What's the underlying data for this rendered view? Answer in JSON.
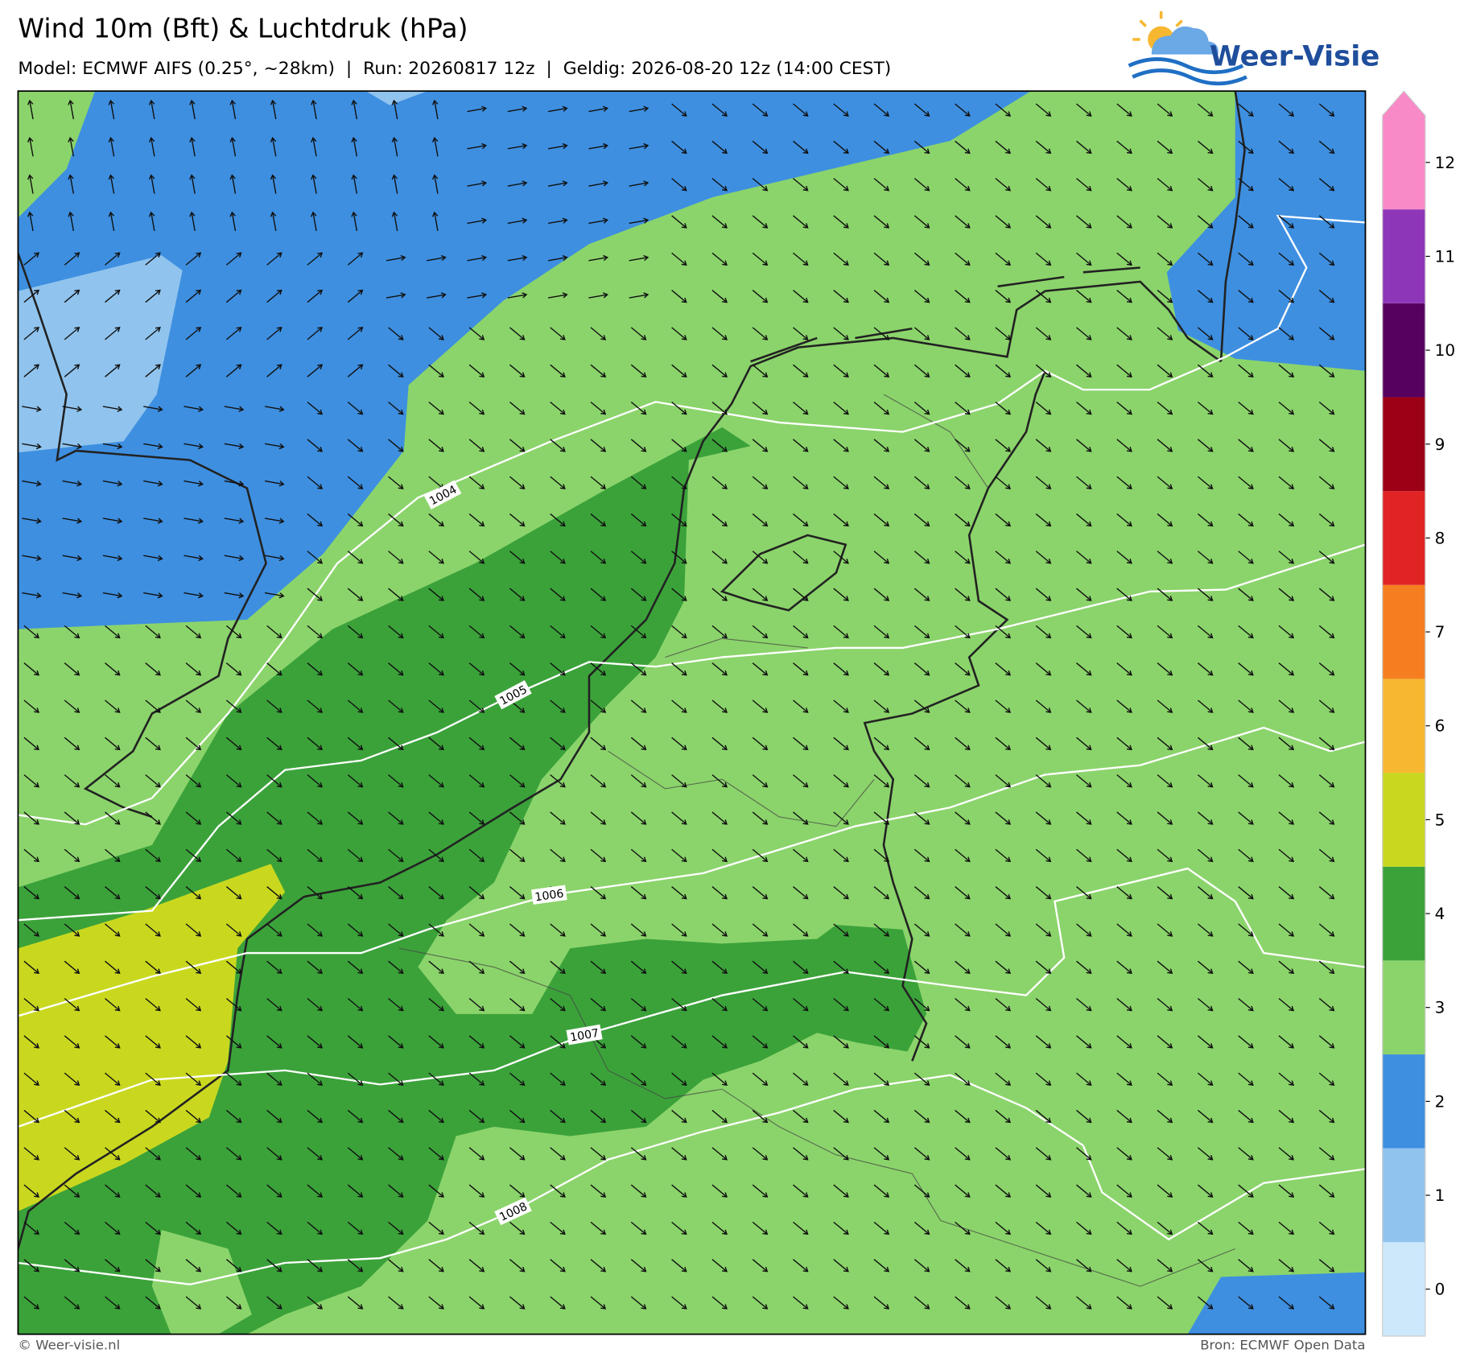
{
  "header": {
    "title": "Wind 10m (Bft) & Luchtdruk (hPa)",
    "subtitle": "Model: ECMWF AIFS (0.25°, ~28km)  |  Run: 20260817 12z  |  Geldig: 2026-08-20 12z (14:00 CEST)",
    "logo": "Weer-Visie"
  },
  "map": {
    "isobar_labels": [
      1004,
      1005,
      1006,
      1007,
      1008
    ]
  },
  "colorbar": {
    "ticks": [
      0,
      1,
      2,
      3,
      4,
      5,
      6,
      7,
      8,
      9,
      10,
      11,
      12
    ],
    "colors": [
      "#cde8fb",
      "#90c4ee",
      "#3e8fe0",
      "#8bd46b",
      "#3ba23a",
      "#c9d81f",
      "#f7b731",
      "#f57f20",
      "#e02424",
      "#9b0016",
      "#560060",
      "#8e36b8",
      "#f98ac8"
    ]
  },
  "footer": {
    "copyright": "© Weer-visie.nl",
    "source": "Bron: ECMWF Open Data"
  }
}
